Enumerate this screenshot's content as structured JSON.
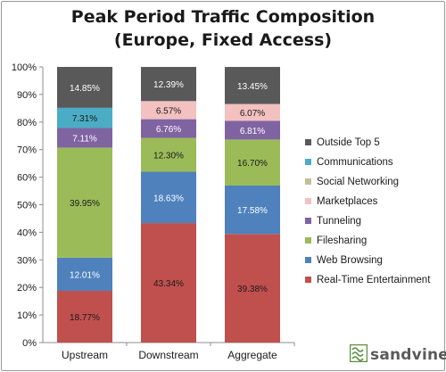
{
  "title_line1": "Peak Period Traffic Composition",
  "title_line2": "(Europe, Fixed Access)",
  "brand": "sandvine",
  "brand_icon": "sandvine-logo-icon",
  "chart_data": {
    "type": "bar",
    "stacked": true,
    "categories": [
      "Upstream",
      "Downstream",
      "Aggregate"
    ],
    "y_ticks": [
      "0%",
      "10%",
      "20%",
      "30%",
      "40%",
      "50%",
      "60%",
      "70%",
      "80%",
      "90%",
      "100%"
    ],
    "ylim": [
      0,
      100
    ],
    "grid": false,
    "legend_position": "right",
    "series": [
      {
        "name": "Real-Time Entertainment",
        "color": "#c0504d",
        "values": [
          18.77,
          43.34,
          39.38
        ],
        "labels": [
          "18.77%",
          "43.34%",
          "39.38%"
        ],
        "label_color": "#1a1a1a"
      },
      {
        "name": "Web Browsing",
        "color": "#4f81bd",
        "values": [
          12.01,
          18.63,
          17.58
        ],
        "labels": [
          "12.01%",
          "18.63%",
          "17.58%"
        ],
        "label_color": "#ffffff"
      },
      {
        "name": "Filesharing",
        "color": "#9bbb59",
        "values": [
          39.95,
          12.3,
          16.7
        ],
        "labels": [
          "39.95%",
          "12.30%",
          "16.70%"
        ],
        "label_color": "#1a1a1a"
      },
      {
        "name": "Tunneling",
        "color": "#8064a2",
        "values": [
          7.11,
          6.76,
          6.81
        ],
        "labels": [
          "7.11%",
          "6.76%",
          "6.81%"
        ],
        "label_color": "#ffffff"
      },
      {
        "name": "Marketplaces",
        "color": "#f2c1c0",
        "values": [
          0,
          6.57,
          6.07
        ],
        "labels": [
          "",
          "6.57%",
          "6.07%"
        ],
        "label_color": "#1a1a1a"
      },
      {
        "name": "Social Networking",
        "color": "#c4bd97",
        "values": [
          0,
          0,
          0
        ],
        "labels": [
          "",
          "",
          ""
        ],
        "label_color": "#1a1a1a"
      },
      {
        "name": "Communications",
        "color": "#4bacc6",
        "values": [
          7.31,
          0,
          0
        ],
        "labels": [
          "7.31%",
          "",
          ""
        ],
        "label_color": "#1a1a1a"
      },
      {
        "name": "Outside Top 5",
        "color": "#595959",
        "values": [
          14.85,
          12.39,
          13.45
        ],
        "labels": [
          "14.85%",
          "12.39%",
          "13.45%"
        ],
        "label_color": "#ffffff"
      }
    ]
  }
}
